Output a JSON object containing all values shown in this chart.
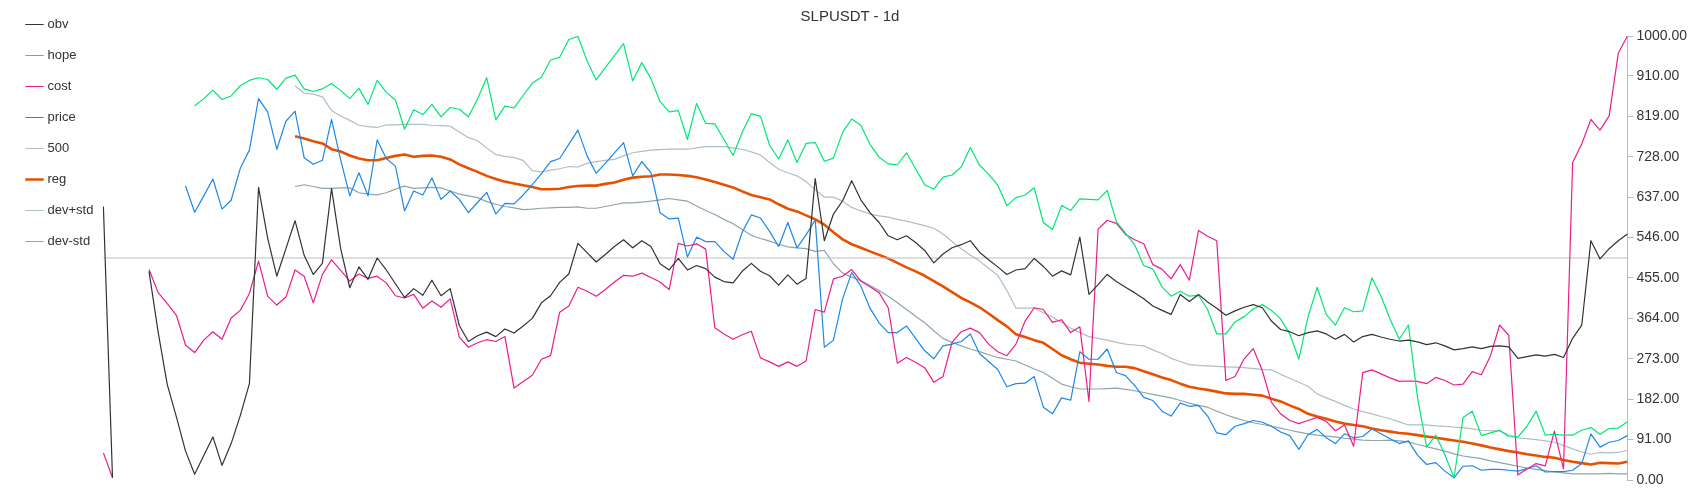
{
  "chart_data": {
    "type": "line",
    "title": "SLPUSDT - 1d",
    "tick_labels": "y",
    "categories": [
      null,
      null,
      null,
      null,
      null,
      null,
      null,
      null,
      null,
      null,
      null,
      null,
      null,
      null,
      null,
      null,
      null,
      null,
      null,
      null,
      null,
      null,
      null,
      null,
      null,
      null,
      null,
      null,
      null,
      null,
      null,
      null,
      null,
      null,
      null,
      null,
      null,
      null,
      null,
      null,
      null,
      null,
      null,
      null,
      null,
      null,
      null,
      null,
      null,
      null,
      null,
      null,
      null,
      null,
      null,
      null,
      null,
      null,
      null,
      null,
      null,
      null,
      null,
      null,
      null,
      null,
      null,
      null,
      null,
      null,
      null,
      null,
      null,
      null,
      null,
      null,
      null,
      null,
      null,
      null,
      null,
      null,
      null,
      null,
      null,
      null,
      null,
      null,
      null,
      null,
      null,
      null,
      null,
      null,
      null,
      null,
      null,
      null,
      null,
      null,
      null,
      null,
      null,
      null,
      null,
      null,
      null,
      null,
      null,
      null,
      null,
      null,
      null,
      null,
      null,
      null,
      null,
      null,
      null,
      null,
      null,
      null,
      null,
      null,
      null,
      null,
      null,
      null,
      null,
      null,
      null,
      null,
      null,
      null,
      null,
      null,
      null,
      null,
      null,
      null,
      null,
      null,
      null,
      null,
      null,
      null,
      null,
      null,
      null,
      null,
      null,
      null,
      null,
      null,
      null,
      null,
      null,
      null,
      null,
      null,
      null,
      null,
      null,
      null,
      null,
      null,
      null,
      null
    ],
    "ylim": [
      0,
      1000
    ],
    "yticks": [
      {
        "value": 0,
        "label": "0.00"
      },
      {
        "value": 91,
        "label": "91.00"
      },
      {
        "value": 182,
        "label": "182.00"
      },
      {
        "value": 273,
        "label": "273.00"
      },
      {
        "value": 364,
        "label": "364.00"
      },
      {
        "value": 455,
        "label": "455.00"
      },
      {
        "value": 546,
        "label": "546.00"
      },
      {
        "value": 637,
        "label": "637.00"
      },
      {
        "value": 728,
        "label": "728.00"
      },
      {
        "value": 819,
        "label": "819.00"
      },
      {
        "value": 910,
        "label": "910.00"
      },
      {
        "value": 1000,
        "label": "1000.00"
      }
    ],
    "legend": "top left",
    "marker": "none",
    "line_style": "solid",
    "series": [
      {
        "name": "obv",
        "color": "#333333",
        "values": [
          616,
          5,
          null,
          null,
          null,
          470,
          333,
          215,
          142,
          65,
          13,
          55,
          97,
          33,
          82,
          145,
          217,
          659,
          545,
          459,
          521,
          584,
          506,
          463,
          488,
          657,
          521,
          433,
          480,
          452,
          500,
          473,
          442,
          411,
          431,
          416,
          450,
          415,
          431,
          348,
          312,
          325,
          333,
          323,
          340,
          331,
          347,
          364,
          399,
          415,
          445,
          464,
          533,
          512,
          491,
          508,
          526,
          541,
          523,
          539,
          526,
          487,
          473,
          499,
          473,
          483,
          476,
          457,
          447,
          444,
          470,
          488,
          470,
          460,
          439,
          462,
          441,
          454,
          679,
          539,
          599,
          629,
          674,
          631,
          602,
          580,
          550,
          541,
          550,
          535,
          517,
          489,
          509,
          523,
          530,
          539,
          513,
          496,
          480,
          463,
          473,
          476,
          499,
          481,
          459,
          471,
          462,
          547,
          418,
          440,
          463,
          447,
          434,
          422,
          408,
          392,
          382,
          373,
          418,
          402,
          418,
          401,
          387,
          371,
          381,
          389,
          395,
          388,
          358,
          339,
          334,
          325,
          332,
          336,
          329,
          317,
          328,
          311,
          323,
          328,
          322,
          317,
          313,
          315,
          311,
          305,
          309,
          302,
          293,
          296,
          300,
          296,
          301,
          302,
          300,
          274,
          278,
          282,
          279,
          283,
          276,
          319,
          349,
          539,
          498,
          521,
          539,
          554
        ]
      },
      {
        "name": "hope",
        "color": "#00e676",
        "values": [
          null,
          null,
          null,
          null,
          null,
          null,
          null,
          null,
          null,
          null,
          843,
          859,
          878,
          857,
          865,
          888,
          900,
          906,
          902,
          880,
          905,
          912,
          881,
          875,
          881,
          893,
          877,
          859,
          882,
          846,
          900,
          873,
          856,
          790,
          834,
          823,
          846,
          818,
          839,
          835,
          818,
          858,
          906,
          811,
          842,
          838,
          866,
          894,
          907,
          946,
          952,
          992,
          999,
          944,
          901,
          929,
          956,
          983,
          899,
          940,
          904,
          852,
          829,
          832,
          767,
          848,
          803,
          802,
          767,
          731,
          783,
          825,
          819,
          754,
          723,
          766,
          715,
          758,
          760,
          718,
          725,
          783,
          813,
          799,
          756,
          727,
          712,
          710,
          737,
          701,
          665,
          655,
          682,
          687,
          705,
          749,
          709,
          689,
          664,
          618,
          636,
          642,
          658,
          580,
          564,
          618,
          607,
          633,
          632,
          631,
          652,
          582,
          556,
          530,
          483,
          475,
          435,
          414,
          425,
          414,
          416,
          384,
          329,
          329,
          356,
          368,
          385,
          395,
          382,
          363,
          329,
          272,
          367,
          434,
          373,
          349,
          388,
          379,
          381,
          455,
          414,
          362,
          317,
          349,
          186,
          74,
          101,
          57,
          5,
          141,
          155,
          100,
          106,
          112,
          98,
          97,
          121,
          155,
          101,
          103,
          101,
          101,
          112,
          118,
          103,
          116,
          117,
          131
        ]
      },
      {
        "name": "cost",
        "color": "#e91e8c",
        "values": [
          61,
          5,
          null,
          null,
          null,
          474,
          422,
          397,
          371,
          304,
          287,
          315,
          334,
          317,
          365,
          382,
          420,
          493,
          414,
          394,
          412,
          473,
          459,
          399,
          463,
          496,
          472,
          448,
          464,
          454,
          459,
          444,
          415,
          410,
          418,
          387,
          403,
          389,
          408,
          322,
          299,
          309,
          316,
          312,
          323,
          207,
          222,
          236,
          272,
          280,
          378,
          392,
          434,
          425,
          414,
          429,
          446,
          461,
          459,
          466,
          456,
          446,
          429,
          533,
          527,
          532,
          520,
          343,
          329,
          317,
          327,
          335,
          275,
          266,
          256,
          266,
          256,
          268,
          384,
          378,
          453,
          459,
          474,
          448,
          435,
          422,
          388,
          263,
          276,
          265,
          253,
          220,
          233,
          310,
          334,
          342,
          332,
          306,
          289,
          280,
          306,
          358,
          388,
          384,
          355,
          361,
          332,
          345,
          177,
          565,
          585,
          578,
          553,
          541,
          532,
          485,
          475,
          453,
          485,
          450,
          562,
          549,
          539,
          224,
          233,
          273,
          296,
          246,
          175,
          149,
          134,
          127,
          134,
          141,
          132,
          111,
          124,
          76,
          242,
          248,
          239,
          230,
          222,
          223,
          222,
          217,
          231,
          224,
          214,
          216,
          244,
          237,
          280,
          349,
          326,
          11,
          25,
          37,
          32,
          110,
          25,
          715,
          757,
          812,
          788,
          820,
          961,
          1000
        ]
      },
      {
        "name": "price",
        "color": "#1e88e5",
        "values": [
          null,
          null,
          null,
          null,
          null,
          null,
          null,
          null,
          null,
          662,
          603,
          640,
          678,
          610,
          630,
          702,
          743,
          859,
          829,
          745,
          808,
          831,
          726,
          711,
          720,
          812,
          721,
          640,
          692,
          640,
          766,
          724,
          707,
          606,
          651,
          642,
          680,
          632,
          651,
          632,
          602,
          625,
          648,
          599,
          623,
          622,
          642,
          665,
          690,
          717,
          724,
          756,
          788,
          730,
          691,
          713,
          737,
          760,
          685,
          717,
          692,
          602,
          588,
          590,
          502,
          547,
          537,
          537,
          515,
          497,
          558,
          597,
          590,
          560,
          526,
          580,
          523,
          552,
          586,
          299,
          315,
          408,
          467,
          437,
          387,
          354,
          332,
          332,
          347,
          319,
          291,
          273,
          302,
          306,
          312,
          329,
          285,
          267,
          249,
          210,
          217,
          218,
          233,
          164,
          149,
          185,
          180,
          289,
          272,
          272,
          295,
          242,
          235,
          213,
          186,
          179,
          155,
          144,
          173,
          166,
          168,
          144,
          106,
          102,
          121,
          127,
          134,
          130,
          121,
          108,
          100,
          69,
          102,
          114,
          95,
          82,
          104,
          95,
          98,
          115,
          104,
          93,
          82,
          88,
          56,
          35,
          39,
          20,
          5,
          31,
          32,
          22,
          24,
          24,
          22,
          20,
          26,
          32,
          18,
          19,
          19,
          22,
          37,
          104,
          74,
          85,
          89,
          100
        ]
      },
      {
        "name": "500",
        "color": "#bdbdbd",
        "values": [
          500,
          500,
          500,
          500,
          500,
          500,
          500,
          500,
          500,
          500,
          500,
          500,
          500,
          500,
          500,
          500,
          500,
          500,
          500,
          500,
          500,
          500,
          500,
          500,
          500,
          500,
          500,
          500,
          500,
          500,
          500,
          500,
          500,
          500,
          500,
          500,
          500,
          500,
          500,
          500,
          500,
          500,
          500,
          500,
          500,
          500,
          500,
          500,
          500,
          500,
          500,
          500,
          500,
          500,
          500,
          500,
          500,
          500,
          500,
          500,
          500,
          500,
          500,
          500,
          500,
          500,
          500,
          500,
          500,
          500,
          500,
          500,
          500,
          500,
          500,
          500,
          500,
          500,
          500,
          500,
          500,
          500,
          500,
          500,
          500,
          500,
          500,
          500,
          500,
          500,
          500,
          500,
          500,
          500,
          500,
          500,
          500,
          500,
          500,
          500,
          500,
          500,
          500,
          500,
          500,
          500,
          500,
          500,
          500,
          500,
          500,
          500,
          500,
          500,
          500,
          500,
          500,
          500,
          500,
          500,
          500,
          500,
          500,
          500,
          500,
          500,
          500,
          500,
          500,
          500,
          500,
          500,
          500,
          500,
          500,
          500,
          500,
          500,
          500,
          500,
          500,
          500,
          500,
          500,
          500,
          500,
          500,
          500,
          500,
          500,
          500,
          500,
          500,
          500,
          500,
          500,
          500,
          500,
          500,
          500,
          500,
          500,
          500,
          500,
          500,
          500,
          500,
          500
        ]
      },
      {
        "name": "reg",
        "color": "#e65100",
        "values": [
          null,
          null,
          null,
          null,
          null,
          null,
          null,
          null,
          null,
          null,
          null,
          null,
          null,
          null,
          null,
          null,
          null,
          null,
          null,
          null,
          null,
          774,
          769,
          763,
          758,
          745,
          740,
          731,
          724,
          720,
          720,
          725,
          730,
          733,
          728,
          730,
          731,
          728,
          722,
          711,
          702,
          694,
          685,
          678,
          672,
          668,
          664,
          660,
          655,
          655,
          656,
          660,
          662,
          663,
          663,
          667,
          670,
          676,
          681,
          683,
          684,
          688,
          688,
          687,
          685,
          682,
          677,
          671,
          665,
          659,
          650,
          642,
          637,
          632,
          621,
          611,
          605,
          596,
          587,
          575,
          558,
          542,
          531,
          523,
          515,
          507,
          499,
          489,
          479,
          470,
          460,
          448,
          436,
          423,
          410,
          400,
          389,
          375,
          360,
          346,
          328,
          322,
          315,
          309,
          295,
          281,
          272,
          264,
          262,
          260,
          257,
          255,
          255,
          252,
          245,
          238,
          231,
          225,
          217,
          210,
          206,
          203,
          199,
          195,
          194,
          194,
          192,
          190,
          183,
          177,
          168,
          160,
          149,
          143,
          138,
          132,
          127,
          124,
          121,
          116,
          112,
          109,
          106,
          104,
          101,
          98,
          95,
          92,
          89,
          86,
          82,
          78,
          73,
          69,
          65,
          62,
          58,
          55,
          52,
          50,
          45,
          41,
          38,
          35,
          39,
          38,
          37,
          41
        ]
      },
      {
        "name": "dev+std",
        "color": "#b0bec5",
        "values": [
          null,
          null,
          null,
          null,
          null,
          null,
          null,
          null,
          null,
          null,
          null,
          null,
          null,
          null,
          null,
          null,
          null,
          null,
          null,
          null,
          null,
          888,
          871,
          869,
          863,
          832,
          820,
          810,
          799,
          796,
          794,
          800,
          800,
          801,
          801,
          801,
          799,
          798,
          797,
          784,
          771,
          764,
          748,
          733,
          729,
          726,
          720,
          697,
          694,
          698,
          701,
          706,
          705,
          713,
          717,
          720,
          722,
          730,
          737,
          740,
          743,
          744,
          745,
          745,
          745,
          748,
          751,
          751,
          751,
          748,
          745,
          739,
          732,
          715,
          700,
          692,
          685,
          672,
          654,
          637,
          637,
          628,
          614,
          606,
          599,
          595,
          592,
          587,
          583,
          578,
          573,
          567,
          554,
          537,
          521,
          507,
          493,
          477,
          461,
          427,
          387,
          387,
          387,
          377,
          367,
          355,
          342,
          332,
          323,
          319,
          315,
          310,
          306,
          304,
          302,
          293,
          285,
          274,
          267,
          260,
          258,
          257,
          256,
          255,
          254,
          253,
          251,
          249,
          248,
          238,
          229,
          220,
          211,
          194,
          185,
          177,
          168,
          160,
          154,
          149,
          143,
          138,
          131,
          124,
          124,
          124,
          122,
          121,
          119,
          118,
          115,
          112,
          111,
          110,
          102,
          95,
          93,
          91,
          88,
          85,
          78,
          70,
          63,
          58,
          62,
          61,
          62,
          67
        ]
      },
      {
        "name": "dev-std",
        "color": "#90a4ae",
        "values": [
          null,
          null,
          null,
          null,
          null,
          null,
          null,
          null,
          null,
          null,
          null,
          null,
          null,
          null,
          null,
          null,
          null,
          null,
          null,
          null,
          null,
          661,
          665,
          661,
          657,
          657,
          658,
          658,
          647,
          644,
          642,
          647,
          655,
          662,
          657,
          658,
          659,
          658,
          651,
          644,
          640,
          636,
          627,
          621,
          616,
          613,
          609,
          610,
          612,
          613,
          614,
          614,
          615,
          612,
          612,
          616,
          620,
          624,
          624,
          626,
          628,
          631,
          634,
          631,
          628,
          617,
          607,
          598,
          587,
          577,
          564,
          551,
          544,
          538,
          531,
          525,
          523,
          521,
          515,
          517,
          487,
          466,
          457,
          449,
          438,
          427,
          414,
          399,
          384,
          369,
          354,
          336,
          319,
          310,
          302,
          295,
          289,
          282,
          276,
          272,
          268,
          259,
          250,
          242,
          229,
          216,
          210,
          205,
          205,
          205,
          206,
          207,
          204,
          201,
          197,
          193,
          189,
          185,
          179,
          173,
          168,
          164,
          155,
          147,
          140,
          134,
          129,
          125,
          121,
          117,
          112,
          108,
          104,
          101,
          99,
          97,
          94,
          92,
          90,
          89,
          89,
          90,
          88,
          86,
          80,
          75,
          70,
          65,
          59,
          54,
          51,
          48,
          43,
          39,
          35,
          31,
          27,
          24,
          21,
          18,
          16,
          14,
          14,
          14,
          14,
          15,
          14,
          14
        ]
      }
    ]
  }
}
